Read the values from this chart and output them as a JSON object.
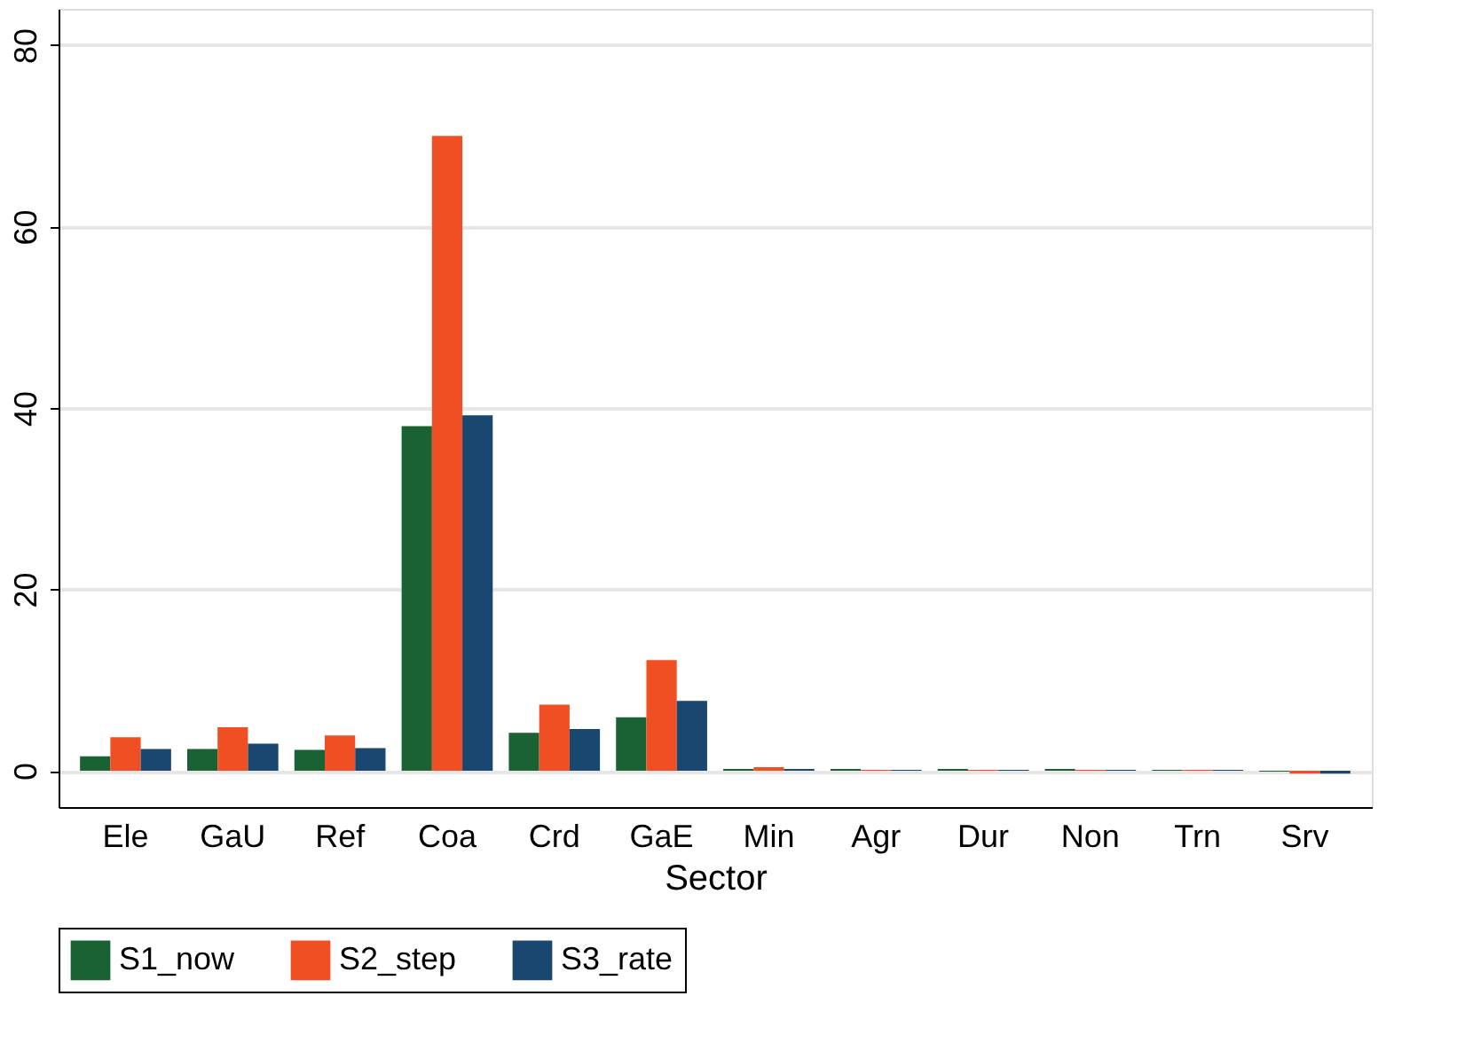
{
  "chart_data": {
    "type": "bar",
    "xlabel": "Sector",
    "categories": [
      "Ele",
      "GaU",
      "Ref",
      "Coa",
      "Crd",
      "GaE",
      "Min",
      "Agr",
      "Dur",
      "Non",
      "Trn",
      "Srv"
    ],
    "series": [
      {
        "name": "S1_now",
        "color": "#1a6133",
        "values": [
          1.6,
          2.4,
          2.3,
          38.0,
          4.2,
          5.9,
          0.2,
          0.2,
          0.2,
          0.2,
          0.1,
          -0.1
        ]
      },
      {
        "name": "S2_step",
        "color": "#f04e23",
        "values": [
          3.7,
          4.8,
          3.9,
          70.0,
          7.3,
          12.2,
          0.4,
          0.1,
          0.1,
          0.1,
          0.1,
          -0.3
        ]
      },
      {
        "name": "S3_rate",
        "color": "#1a476f",
        "values": [
          2.4,
          3.0,
          2.5,
          39.2,
          4.6,
          7.7,
          0.2,
          0.1,
          0.1,
          0.1,
          0.1,
          -0.3
        ]
      }
    ],
    "ylim": [
      -4,
      84
    ],
    "yticks": [
      0,
      20,
      40,
      60,
      80
    ],
    "grid": "y",
    "legend": "bottom"
  }
}
